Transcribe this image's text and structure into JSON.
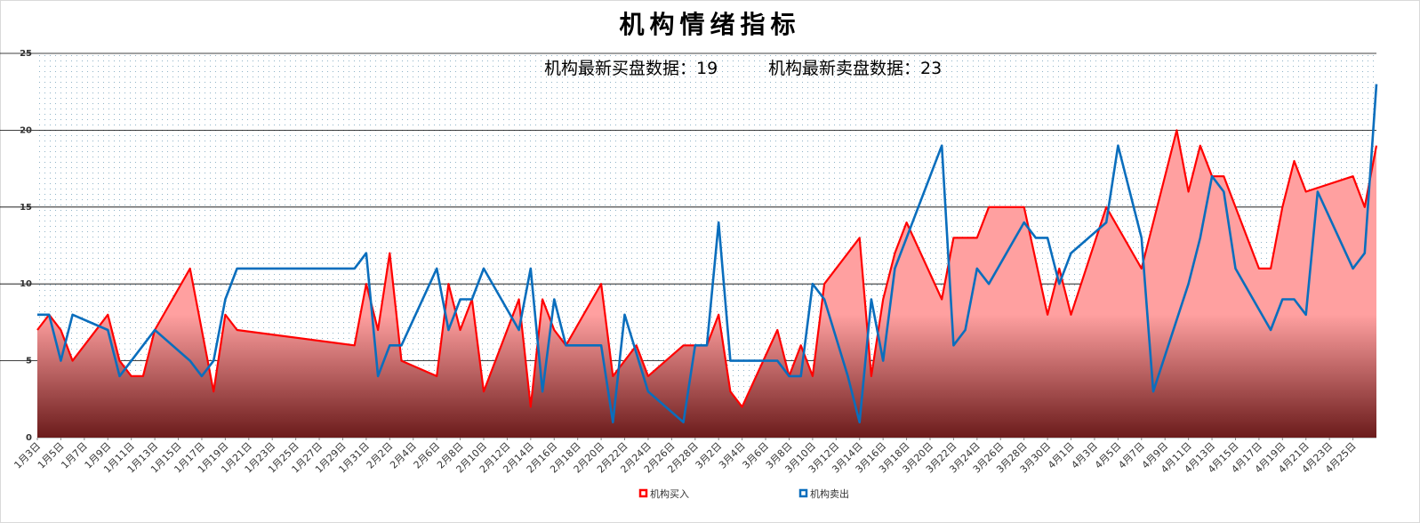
{
  "title": "机构情绪指标",
  "annotation": {
    "buy_label": "机构最新买盘数据：",
    "buy_value": "19",
    "sell_label": "机构最新卖盘数据：",
    "sell_value": "23"
  },
  "colors": {
    "buy": "#ff0000",
    "sell": "#0a6ebd",
    "area_top": "#ffa0a0",
    "area_bottom": "#6b1b1b",
    "grid": "#000000"
  },
  "chart_data": {
    "type": "area",
    "title": "机构情绪指标",
    "ylim": [
      0,
      25
    ],
    "yticks": [
      0,
      5,
      10,
      15,
      20,
      25
    ],
    "grid": true,
    "legend_position": "bottom",
    "x_tick_labels": [
      "1月3日",
      "1月5日",
      "1月7日",
      "1月9日",
      "1月11日",
      "1月13日",
      "1月15日",
      "1月17日",
      "1月19日",
      "1月21日",
      "1月23日",
      "1月25日",
      "1月27日",
      "1月29日",
      "1月31日",
      "2月2日",
      "2月4日",
      "2月6日",
      "2月8日",
      "2月10日",
      "2月12日",
      "2月14日",
      "2月16日",
      "2月18日",
      "2月20日",
      "2月22日",
      "2月24日",
      "2月26日",
      "2月28日",
      "3月2日",
      "3月4日",
      "3月6日",
      "3月8日",
      "3月10日",
      "3月12日",
      "3月14日",
      "3月16日",
      "3月18日",
      "3月20日",
      "3月22日",
      "3月24日",
      "3月26日",
      "3月28日",
      "3月30日",
      "4月1日",
      "4月3日",
      "4月5日",
      "4月7日",
      "4月9日",
      "4月11日",
      "4月13日",
      "4月15日",
      "4月17日",
      "4月19日",
      "4月21日",
      "4月23日",
      "4月25日"
    ],
    "series": [
      {
        "name": "机构买入",
        "type": "area",
        "color": "#ff0000",
        "points": [
          [
            0,
            7
          ],
          [
            1,
            8
          ],
          [
            2,
            7
          ],
          [
            3,
            5
          ],
          [
            6,
            8
          ],
          [
            7,
            5
          ],
          [
            8,
            4
          ],
          [
            9,
            4
          ],
          [
            10,
            7
          ],
          [
            13,
            11
          ],
          [
            15,
            3
          ],
          [
            16,
            8
          ],
          [
            17,
            7
          ],
          [
            27,
            6
          ],
          [
            28,
            10
          ],
          [
            29,
            7
          ],
          [
            30,
            12
          ],
          [
            31,
            5
          ],
          [
            34,
            4
          ],
          [
            35,
            10
          ],
          [
            36,
            7
          ],
          [
            37,
            9
          ],
          [
            38,
            3
          ],
          [
            41,
            9
          ],
          [
            42,
            2
          ],
          [
            43,
            9
          ],
          [
            44,
            7
          ],
          [
            45,
            6
          ],
          [
            48,
            10
          ],
          [
            49,
            4
          ],
          [
            51,
            6
          ],
          [
            52,
            4
          ],
          [
            55,
            6
          ],
          [
            57,
            6
          ],
          [
            58,
            8
          ],
          [
            59,
            3
          ],
          [
            60,
            2
          ],
          [
            63,
            7
          ],
          [
            64,
            4
          ],
          [
            65,
            6
          ],
          [
            66,
            4
          ],
          [
            67,
            10
          ],
          [
            70,
            13
          ],
          [
            71,
            4
          ],
          [
            72,
            9
          ],
          [
            73,
            12
          ],
          [
            74,
            14
          ],
          [
            77,
            9
          ],
          [
            78,
            13
          ],
          [
            80,
            13
          ],
          [
            81,
            15
          ],
          [
            84,
            15
          ],
          [
            86,
            8
          ],
          [
            87,
            11
          ],
          [
            88,
            8
          ],
          [
            91,
            15
          ],
          [
            94,
            11
          ],
          [
            97,
            20
          ],
          [
            98,
            16
          ],
          [
            99,
            19
          ],
          [
            100,
            17
          ],
          [
            101,
            17
          ],
          [
            104,
            11
          ],
          [
            105,
            11
          ],
          [
            106,
            15
          ],
          [
            107,
            18
          ],
          [
            108,
            16
          ],
          [
            112,
            17
          ],
          [
            113,
            15
          ],
          [
            114,
            19
          ]
        ]
      },
      {
        "name": "机构卖出",
        "type": "line",
        "color": "#0a6ebd",
        "points": [
          [
            0,
            8
          ],
          [
            1,
            8
          ],
          [
            2,
            5
          ],
          [
            3,
            8
          ],
          [
            6,
            7
          ],
          [
            7,
            4
          ],
          [
            10,
            7
          ],
          [
            13,
            5
          ],
          [
            14,
            4
          ],
          [
            15,
            5
          ],
          [
            16,
            9
          ],
          [
            17,
            11
          ],
          [
            27,
            11
          ],
          [
            28,
            12
          ],
          [
            29,
            4
          ],
          [
            30,
            6
          ],
          [
            31,
            6
          ],
          [
            34,
            11
          ],
          [
            35,
            7
          ],
          [
            36,
            9
          ],
          [
            37,
            9
          ],
          [
            38,
            11
          ],
          [
            41,
            7
          ],
          [
            42,
            11
          ],
          [
            43,
            3
          ],
          [
            44,
            9
          ],
          [
            45,
            6
          ],
          [
            48,
            6
          ],
          [
            49,
            1
          ],
          [
            50,
            8
          ],
          [
            52,
            3
          ],
          [
            55,
            1
          ],
          [
            56,
            6
          ],
          [
            57,
            6
          ],
          [
            58,
            14
          ],
          [
            59,
            5
          ],
          [
            62,
            5
          ],
          [
            63,
            5
          ],
          [
            64,
            4
          ],
          [
            65,
            4
          ],
          [
            66,
            10
          ],
          [
            67,
            9
          ],
          [
            69,
            4
          ],
          [
            70,
            1
          ],
          [
            71,
            9
          ],
          [
            72,
            5
          ],
          [
            73,
            11
          ],
          [
            77,
            19
          ],
          [
            78,
            6
          ],
          [
            79,
            7
          ],
          [
            80,
            11
          ],
          [
            81,
            10
          ],
          [
            84,
            14
          ],
          [
            85,
            13
          ],
          [
            86,
            13
          ],
          [
            87,
            10
          ],
          [
            88,
            12
          ],
          [
            91,
            14
          ],
          [
            92,
            19
          ],
          [
            94,
            13
          ],
          [
            95,
            3
          ],
          [
            98,
            10
          ],
          [
            99,
            13
          ],
          [
            100,
            17
          ],
          [
            101,
            16
          ],
          [
            102,
            11
          ],
          [
            105,
            7
          ],
          [
            106,
            9
          ],
          [
            107,
            9
          ],
          [
            108,
            8
          ],
          [
            109,
            16
          ],
          [
            112,
            11
          ],
          [
            113,
            12
          ],
          [
            114,
            23
          ]
        ]
      }
    ]
  }
}
